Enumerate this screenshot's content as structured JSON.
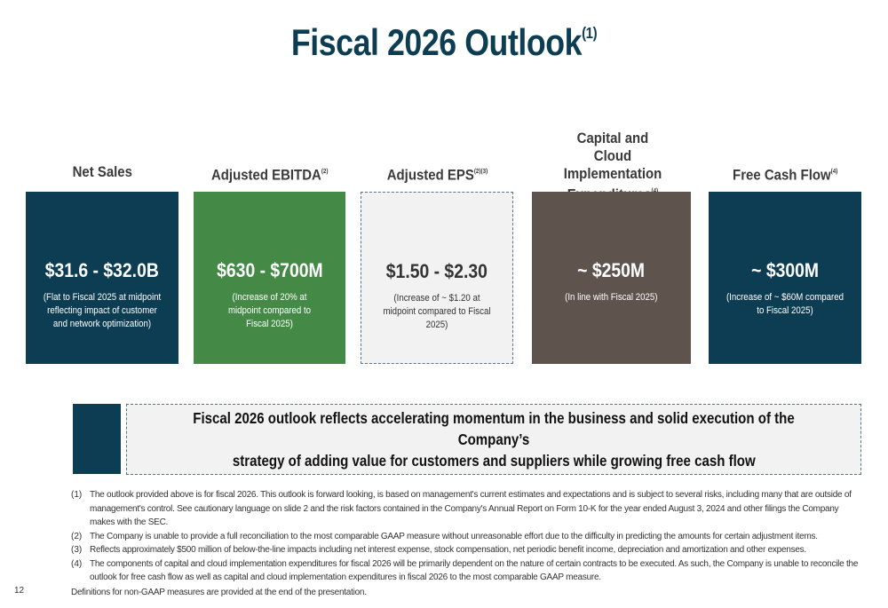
{
  "title": {
    "text": "Fiscal 2026 Outlook",
    "sup": "(1)"
  },
  "colors": {
    "title": "#0d3d52",
    "net_sales": "#0d3d52",
    "ebitda": "#448a46",
    "eps": "#f2f2f2",
    "capex": "#5e534d",
    "fcf": "#0d3d52"
  },
  "metrics": [
    {
      "header": "Net Sales",
      "header_sup": "",
      "value": "$31.6 - $32.0B",
      "note": "(Flat to Fiscal 2025 at midpoint reflecting impact of customer and network optimization)"
    },
    {
      "header": "Adjusted EBITDA",
      "header_sup": "(2)",
      "value": "$630 - $700M",
      "note": "(Increase of 20% at midpoint compared to Fiscal 2025)"
    },
    {
      "header": "Adjusted EPS",
      "header_sup": "(2)(3)",
      "value": "$1.50 - $2.30",
      "note": "(Increase of ~ $1.20 at midpoint compared to Fiscal 2025)"
    },
    {
      "header": "Capital and Cloud Implementation Expenditures",
      "header_sup": "(4)",
      "value": "~ $250M",
      "note": "(In line with Fiscal 2025)"
    },
    {
      "header": "Free Cash Flow",
      "header_sup": "(4)",
      "value": "~ $300M",
      "note": "(Increase of ~ $60M compared to Fiscal 2025)"
    }
  ],
  "callout": {
    "line1": "Fiscal 2026 outlook reflects accelerating momentum in the business and solid execution of the Company’s",
    "line2": "strategy of adding value for customers and suppliers while growing free cash flow"
  },
  "footnotes": [
    {
      "num": "(1)",
      "text": "The outlook provided above is for fiscal 2026. This outlook is forward looking, is based on management's current estimates and expectations and is subject to several risks, including many that are outside of management's control. See cautionary language on slide 2 and the risk factors contained in the Company's Annual Report on Form 10-K for the year ended August 3, 2024 and other filings the Company makes with the SEC."
    },
    {
      "num": "(2)",
      "text": "The Company is unable to provide a full reconciliation to the most comparable GAAP measure without unreasonable effort due to the difficulty in predicting the amounts for certain adjustment items."
    },
    {
      "num": "(3)",
      "text": "Reflects approximately $500 million of below-the-line impacts including net interest expense, stock compensation, net periodic benefit income, depreciation and amortization and other expenses."
    },
    {
      "num": "(4)",
      "text": "The components of capital and cloud implementation expenditures for fiscal 2026 will be primarily dependent on the nature of certain contracts to be executed. As such, the Company is unable to reconcile the outlook for free cash flow as well as capital and cloud implementation expenditures in fiscal 2026 to the most comparable GAAP measure."
    }
  ],
  "page_number": "12",
  "definitions_note": "Definitions for non-GAAP measures are provided at the end of the presentation."
}
